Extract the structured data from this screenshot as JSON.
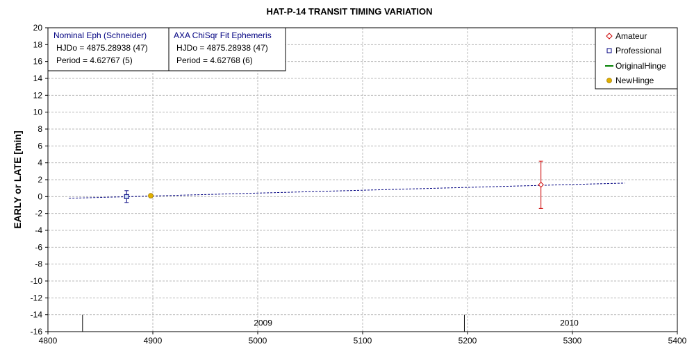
{
  "chart_data": {
    "type": "scatter",
    "title": "HAT-P-14 TRANSIT TIMING VARIATION",
    "xlabel": "",
    "ylabel": "EARLY or LATE [min]",
    "xlim": [
      4800,
      5400
    ],
    "ylim": [
      -16,
      20
    ],
    "x_ticks": [
      "4800",
      "4900",
      "5000",
      "5100",
      "5200",
      "5300",
      "5400"
    ],
    "y_ticks": [
      "20",
      "18",
      "16",
      "14",
      "12",
      "10",
      "8",
      "6",
      "4",
      "2",
      "0",
      "-2",
      "-4",
      "-6",
      "-8",
      "-10",
      "-12",
      "-14",
      "-16"
    ],
    "grid": true,
    "legend_position": "top-right",
    "legend": [
      {
        "label": "Amateur",
        "color": "#cc0000",
        "marker": "diamond"
      },
      {
        "label": "Professional",
        "color": "#000080",
        "marker": "square"
      },
      {
        "label": "OriginalHinge",
        "color": "#008000",
        "marker": "line"
      },
      {
        "label": "NewHinge",
        "color": "#e0b000",
        "marker": "circle"
      }
    ],
    "series": [
      {
        "name": "Amateur",
        "points": [
          {
            "x": 5270,
            "y": 1.4,
            "err": 2.8
          }
        ]
      },
      {
        "name": "Professional",
        "points": [
          {
            "x": 4875,
            "y": 0.0,
            "err": 0.7
          }
        ]
      },
      {
        "name": "NewHinge",
        "points": [
          {
            "x": 4898,
            "y": 0.1
          }
        ]
      }
    ],
    "fit_line": {
      "x": [
        4820,
        5350
      ],
      "y": [
        -0.2,
        1.6
      ],
      "color": "#000080"
    },
    "year_markers": [
      {
        "x": 4833,
        "label": ""
      },
      {
        "x": 5197,
        "label": ""
      }
    ],
    "year_labels": [
      {
        "x": 5005,
        "label": "2009"
      },
      {
        "x": 5297,
        "label": "2010"
      }
    ],
    "info_boxes": [
      {
        "title": "Nominal Eph (Schneider)",
        "line1": "HJDo = 4875.28938 (47)",
        "line2": "Period = 4.62767 (5)"
      },
      {
        "title": "AXA ChiSqr Fit Ephemeris",
        "line1": "HJDo = 4875.28938 (47)",
        "line2": "Period = 4.62768 (6)"
      }
    ]
  }
}
